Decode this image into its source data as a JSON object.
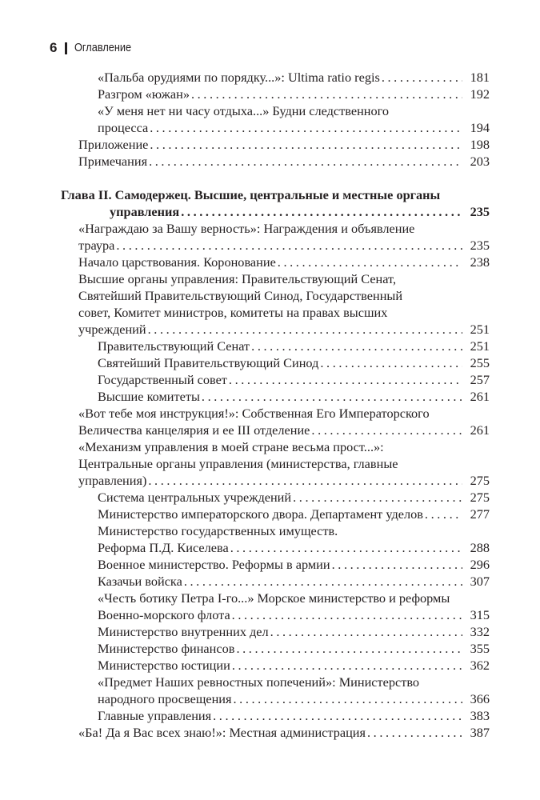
{
  "header": {
    "page_number": "6",
    "running_title": "Оглавление"
  },
  "toc": [
    {
      "level": 2,
      "lines": [
        "«Пальба орудиями по порядку...»: Ultima ratio regis"
      ],
      "page": "181"
    },
    {
      "level": 2,
      "lines": [
        "Разгром «южан»"
      ],
      "page": "192"
    },
    {
      "level": 2,
      "lines": [
        "«У меня нет ни часу отдыха...» Будни следственного",
        "процесса"
      ],
      "page": "194"
    },
    {
      "level": 1,
      "lines": [
        "Приложение"
      ],
      "page": "198"
    },
    {
      "level": 1,
      "lines": [
        "Примечания"
      ],
      "page": "203"
    },
    {
      "level": 0,
      "lines": [
        "Глава II. Самодержец. Высшие, центральные и местные органы",
        "управления"
      ],
      "page": "235"
    },
    {
      "level": 1,
      "lines": [
        "«Награждаю за Вашу верность»: Награждения и объявление",
        "траура"
      ],
      "page": "235"
    },
    {
      "level": 1,
      "lines": [
        "Начало царствования. Коронование"
      ],
      "page": "238"
    },
    {
      "level": 1,
      "lines": [
        "Высшие органы управления: Правительствующий Сенат,",
        "Святейший Правительствующий Синод, Государственный",
        "совет, Комитет министров, комитеты на правах высших",
        "учреждений"
      ],
      "page": "251"
    },
    {
      "level": 2,
      "lines": [
        "Правительствующий Сенат"
      ],
      "page": "251"
    },
    {
      "level": 2,
      "lines": [
        "Святейший Правительствующий Синод"
      ],
      "page": "255"
    },
    {
      "level": 2,
      "lines": [
        "Государственный совет"
      ],
      "page": "257"
    },
    {
      "level": 2,
      "lines": [
        "Высшие комитеты"
      ],
      "page": "261"
    },
    {
      "level": 1,
      "lines": [
        "«Вот тебе моя инструкция!»: Собственная Его Императорского",
        "Величества канцелярия и ее III отделение"
      ],
      "page": "261"
    },
    {
      "level": 1,
      "lines": [
        "«Механизм управления в моей стране весьма прост...»:",
        "Центральные органы управления (министерства, главные",
        "управления)"
      ],
      "page": "275"
    },
    {
      "level": 2,
      "lines": [
        "Система центральных учреждений"
      ],
      "page": "275"
    },
    {
      "level": 2,
      "lines": [
        "Министерство императорского двора. Департамент уделов"
      ],
      "page": "277"
    },
    {
      "level": 2,
      "lines": [
        "Министерство государственных имуществ.",
        "Реформа П.Д. Киселева"
      ],
      "page": "288"
    },
    {
      "level": 2,
      "lines": [
        "Военное министерство. Реформы в армии"
      ],
      "page": "296"
    },
    {
      "level": 2,
      "lines": [
        "Казачьи войска"
      ],
      "page": "307"
    },
    {
      "level": 2,
      "lines": [
        "«Честь ботику Петра I-го...» Морское министерство и реформы",
        "Военно-морского флота"
      ],
      "page": "315"
    },
    {
      "level": 2,
      "lines": [
        "Министерство внутренних дел"
      ],
      "page": "332"
    },
    {
      "level": 2,
      "lines": [
        "Министерство финансов"
      ],
      "page": "355"
    },
    {
      "level": 2,
      "lines": [
        "Министерство юстиции"
      ],
      "page": "362"
    },
    {
      "level": 2,
      "lines": [
        "«Предмет Наших ревностных попечений»: Министерство",
        "народного просвещения"
      ],
      "page": "366"
    },
    {
      "level": 2,
      "lines": [
        "Главные управления"
      ],
      "page": "383"
    },
    {
      "level": 1,
      "lines": [
        "«Ба! Да я Вас всех знаю!»: Местная администрация"
      ],
      "page": "387"
    }
  ]
}
